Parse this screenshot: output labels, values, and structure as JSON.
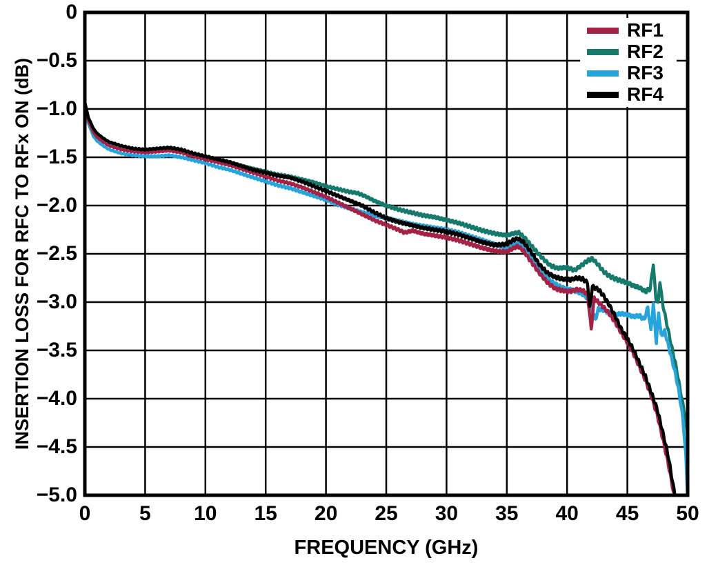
{
  "figure": {
    "background": "#ffffff",
    "border_color": "#000000",
    "grid_color": "#000000"
  },
  "chart_data": {
    "type": "line",
    "title": "",
    "xlabel": "FREQUENCY (GHz)",
    "ylabel": "INSERTION LOSS FOR RFC TO RFx ON (dB)",
    "xlim": [
      0,
      50
    ],
    "ylim": [
      -5,
      0
    ],
    "grid": true,
    "x_ticks": [
      0,
      5,
      10,
      15,
      20,
      25,
      30,
      35,
      40,
      45,
      50
    ],
    "x_tick_labels": [
      "0",
      "5",
      "10",
      "15",
      "20",
      "25",
      "30",
      "35",
      "40",
      "45",
      "50"
    ],
    "y_ticks": [
      0,
      -0.5,
      -1.0,
      -1.5,
      -2.0,
      -2.5,
      -3.0,
      -3.5,
      -4.0,
      -4.5,
      -5.0
    ],
    "y_tick_labels": [
      "0",
      "−0.5",
      "−1.0",
      "−1.5",
      "−2.0",
      "−2.5",
      "−3.0",
      "−3.5",
      "−4.0",
      "−4.5",
      "−5.0"
    ],
    "legend": {
      "position": "top-right",
      "entries": [
        {
          "name": "RF1",
          "color": "#A32246"
        },
        {
          "name": "RF2",
          "color": "#15796B"
        },
        {
          "name": "RF3",
          "color": "#27A4DB"
        },
        {
          "name": "RF4",
          "color": "#000000"
        }
      ]
    },
    "series": [
      {
        "name": "RF2",
        "color": "#15796B",
        "points": [
          [
            0,
            -0.94
          ],
          [
            0.3,
            -1.1
          ],
          [
            0.7,
            -1.22
          ],
          [
            1,
            -1.27
          ],
          [
            1.5,
            -1.32
          ],
          [
            2,
            -1.36
          ],
          [
            3,
            -1.4
          ],
          [
            4,
            -1.42
          ],
          [
            5,
            -1.43
          ],
          [
            6,
            -1.43
          ],
          [
            7,
            -1.42
          ],
          [
            8,
            -1.44
          ],
          [
            9,
            -1.47
          ],
          [
            10,
            -1.5
          ],
          [
            11,
            -1.53
          ],
          [
            12,
            -1.56
          ],
          [
            13,
            -1.59
          ],
          [
            14,
            -1.62
          ],
          [
            15,
            -1.65
          ],
          [
            16,
            -1.68
          ],
          [
            17,
            -1.7
          ],
          [
            18,
            -1.73
          ],
          [
            19,
            -1.76
          ],
          [
            20,
            -1.8
          ],
          [
            21,
            -1.83
          ],
          [
            22,
            -1.86
          ],
          [
            22.6,
            -1.87
          ],
          [
            23.2,
            -1.9
          ],
          [
            24,
            -1.95
          ],
          [
            25,
            -2.0
          ],
          [
            26,
            -2.04
          ],
          [
            27,
            -2.07
          ],
          [
            28,
            -2.1
          ],
          [
            29,
            -2.12
          ],
          [
            30,
            -2.15
          ],
          [
            31,
            -2.18
          ],
          [
            32,
            -2.22
          ],
          [
            33,
            -2.26
          ],
          [
            34,
            -2.29
          ],
          [
            35,
            -2.31
          ],
          [
            35.5,
            -2.29
          ],
          [
            36,
            -2.28
          ],
          [
            36.6,
            -2.35
          ],
          [
            37.2,
            -2.44
          ],
          [
            38,
            -2.55
          ],
          [
            38.6,
            -2.62
          ],
          [
            39.2,
            -2.65
          ],
          [
            40,
            -2.64
          ],
          [
            40.6,
            -2.67
          ],
          [
            41.2,
            -2.62
          ],
          [
            41.7,
            -2.57
          ],
          [
            42.1,
            -2.55
          ],
          [
            42.5,
            -2.6
          ],
          [
            43,
            -2.68
          ],
          [
            43.5,
            -2.73
          ],
          [
            44,
            -2.76
          ],
          [
            44.5,
            -2.78
          ],
          [
            45,
            -2.8
          ],
          [
            45.5,
            -2.83
          ],
          [
            46,
            -2.85
          ],
          [
            46.5,
            -2.89
          ],
          [
            46.9,
            -2.86
          ],
          [
            47.15,
            -2.6
          ],
          [
            47.35,
            -2.95
          ],
          [
            47.55,
            -3.02
          ],
          [
            47.7,
            -2.78
          ],
          [
            47.9,
            -3.0
          ],
          [
            48.2,
            -3.18
          ],
          [
            48.6,
            -3.42
          ],
          [
            49,
            -3.64
          ],
          [
            49.4,
            -3.92
          ],
          [
            49.7,
            -4.12
          ],
          [
            50,
            -4.38
          ]
        ]
      },
      {
        "name": "RF3",
        "color": "#27A4DB",
        "points": [
          [
            0,
            -0.96
          ],
          [
            0.3,
            -1.15
          ],
          [
            0.7,
            -1.28
          ],
          [
            1,
            -1.33
          ],
          [
            1.5,
            -1.38
          ],
          [
            2,
            -1.42
          ],
          [
            3,
            -1.46
          ],
          [
            4,
            -1.48
          ],
          [
            5,
            -1.49
          ],
          [
            6,
            -1.49
          ],
          [
            7,
            -1.48
          ],
          [
            8,
            -1.5
          ],
          [
            9,
            -1.53
          ],
          [
            10,
            -1.56
          ],
          [
            11,
            -1.6
          ],
          [
            12,
            -1.63
          ],
          [
            13,
            -1.67
          ],
          [
            14,
            -1.71
          ],
          [
            15,
            -1.75
          ],
          [
            16,
            -1.79
          ],
          [
            17,
            -1.82
          ],
          [
            18,
            -1.86
          ],
          [
            19,
            -1.9
          ],
          [
            20,
            -1.94
          ],
          [
            21,
            -1.99
          ],
          [
            22,
            -2.03
          ],
          [
            23,
            -2.07
          ],
          [
            24,
            -2.1
          ],
          [
            25,
            -2.13
          ],
          [
            26,
            -2.16
          ],
          [
            27,
            -2.19
          ],
          [
            28,
            -2.21
          ],
          [
            29,
            -2.23
          ],
          [
            30,
            -2.25
          ],
          [
            31,
            -2.28
          ],
          [
            32,
            -2.32
          ],
          [
            33,
            -2.36
          ],
          [
            34,
            -2.4
          ],
          [
            35,
            -2.44
          ],
          [
            35.5,
            -2.41
          ],
          [
            36,
            -2.39
          ],
          [
            36.5,
            -2.45
          ],
          [
            37,
            -2.54
          ],
          [
            37.7,
            -2.66
          ],
          [
            38.4,
            -2.76
          ],
          [
            39,
            -2.81
          ],
          [
            39.6,
            -2.85
          ],
          [
            40.2,
            -2.87
          ],
          [
            40.8,
            -2.89
          ],
          [
            41.3,
            -2.92
          ],
          [
            41.8,
            -2.97
          ],
          [
            42.1,
            -3.08
          ],
          [
            42.35,
            -3.18
          ],
          [
            42.6,
            -3.07
          ],
          [
            43,
            -3.08
          ],
          [
            43.5,
            -3.11
          ],
          [
            44,
            -3.13
          ],
          [
            44.5,
            -3.12
          ],
          [
            45,
            -3.13
          ],
          [
            45.5,
            -3.15
          ],
          [
            46,
            -3.14
          ],
          [
            46.4,
            -3.18
          ],
          [
            46.7,
            -3.05
          ],
          [
            46.95,
            -3.3
          ],
          [
            47.15,
            -3.02
          ],
          [
            47.4,
            -3.42
          ],
          [
            47.6,
            -3.1
          ],
          [
            47.8,
            -3.35
          ],
          [
            48.1,
            -3.3
          ],
          [
            48.4,
            -3.45
          ],
          [
            48.7,
            -3.6
          ],
          [
            49,
            -3.75
          ],
          [
            49.3,
            -3.95
          ],
          [
            49.6,
            -4.2
          ],
          [
            49.85,
            -4.6
          ],
          [
            50,
            -5.02
          ]
        ]
      },
      {
        "name": "RF1",
        "color": "#A32246",
        "points": [
          [
            0,
            -0.94
          ],
          [
            0.3,
            -1.12
          ],
          [
            0.7,
            -1.24
          ],
          [
            1,
            -1.29
          ],
          [
            1.5,
            -1.34
          ],
          [
            2,
            -1.38
          ],
          [
            3,
            -1.42
          ],
          [
            4,
            -1.44
          ],
          [
            5,
            -1.45
          ],
          [
            6,
            -1.44
          ],
          [
            7,
            -1.43
          ],
          [
            8,
            -1.45
          ],
          [
            9,
            -1.49
          ],
          [
            10,
            -1.52
          ],
          [
            11,
            -1.55
          ],
          [
            12,
            -1.58
          ],
          [
            13,
            -1.62
          ],
          [
            14,
            -1.66
          ],
          [
            15,
            -1.7
          ],
          [
            16,
            -1.74
          ],
          [
            17,
            -1.77
          ],
          [
            18,
            -1.81
          ],
          [
            19,
            -1.86
          ],
          [
            20,
            -1.91
          ],
          [
            21,
            -1.97
          ],
          [
            22,
            -2.03
          ],
          [
            23,
            -2.09
          ],
          [
            24,
            -2.15
          ],
          [
            25,
            -2.2
          ],
          [
            26,
            -2.25
          ],
          [
            26.5,
            -2.28
          ],
          [
            27.2,
            -2.26
          ],
          [
            28,
            -2.29
          ],
          [
            29,
            -2.31
          ],
          [
            30,
            -2.33
          ],
          [
            31,
            -2.36
          ],
          [
            32,
            -2.4
          ],
          [
            33,
            -2.44
          ],
          [
            34,
            -2.47
          ],
          [
            35,
            -2.48
          ],
          [
            35.4,
            -2.45
          ],
          [
            35.9,
            -2.42
          ],
          [
            36.4,
            -2.47
          ],
          [
            37,
            -2.58
          ],
          [
            37.7,
            -2.7
          ],
          [
            38.4,
            -2.8
          ],
          [
            39,
            -2.86
          ],
          [
            39.6,
            -2.88
          ],
          [
            40.2,
            -2.89
          ],
          [
            40.8,
            -2.87
          ],
          [
            41.3,
            -2.88
          ],
          [
            41.7,
            -2.92
          ],
          [
            42,
            -3.28
          ],
          [
            42.25,
            -2.96
          ],
          [
            42.6,
            -3.0
          ],
          [
            43,
            -3.05
          ],
          [
            43.5,
            -3.12
          ],
          [
            44,
            -3.21
          ],
          [
            44.5,
            -3.32
          ],
          [
            45,
            -3.42
          ],
          [
            45.5,
            -3.53
          ],
          [
            46,
            -3.67
          ],
          [
            46.5,
            -3.81
          ],
          [
            47,
            -3.98
          ],
          [
            47.5,
            -4.18
          ],
          [
            48,
            -4.45
          ],
          [
            48.4,
            -4.68
          ],
          [
            48.8,
            -4.95
          ],
          [
            48.95,
            -5.05
          ]
        ]
      },
      {
        "name": "RF4",
        "color": "#000000",
        "points": [
          [
            0,
            -0.93
          ],
          [
            0.3,
            -1.09
          ],
          [
            0.7,
            -1.2
          ],
          [
            1,
            -1.25
          ],
          [
            1.5,
            -1.3
          ],
          [
            2,
            -1.34
          ],
          [
            3,
            -1.38
          ],
          [
            4,
            -1.41
          ],
          [
            5,
            -1.42
          ],
          [
            6,
            -1.41
          ],
          [
            7,
            -1.4
          ],
          [
            8,
            -1.42
          ],
          [
            9,
            -1.46
          ],
          [
            10,
            -1.49
          ],
          [
            11,
            -1.52
          ],
          [
            12,
            -1.55
          ],
          [
            13,
            -1.59
          ],
          [
            14,
            -1.63
          ],
          [
            15,
            -1.66
          ],
          [
            16,
            -1.69
          ],
          [
            17,
            -1.71
          ],
          [
            18,
            -1.75
          ],
          [
            19,
            -1.8
          ],
          [
            20,
            -1.85
          ],
          [
            21,
            -1.9
          ],
          [
            22,
            -1.95
          ],
          [
            23,
            -2.0
          ],
          [
            24,
            -2.07
          ],
          [
            25,
            -2.13
          ],
          [
            26,
            -2.17
          ],
          [
            27,
            -2.2
          ],
          [
            28,
            -2.23
          ],
          [
            29,
            -2.25
          ],
          [
            30,
            -2.27
          ],
          [
            31,
            -2.3
          ],
          [
            32,
            -2.34
          ],
          [
            33,
            -2.38
          ],
          [
            34,
            -2.41
          ],
          [
            35,
            -2.4
          ],
          [
            35.5,
            -2.36
          ],
          [
            35.9,
            -2.34
          ],
          [
            36.4,
            -2.38
          ],
          [
            37,
            -2.48
          ],
          [
            37.7,
            -2.61
          ],
          [
            38.4,
            -2.7
          ],
          [
            39,
            -2.74
          ],
          [
            39.6,
            -2.76
          ],
          [
            40.2,
            -2.77
          ],
          [
            40.8,
            -2.75
          ],
          [
            41.3,
            -2.76
          ],
          [
            41.7,
            -2.8
          ],
          [
            41.88,
            -3.06
          ],
          [
            42.1,
            -2.84
          ],
          [
            42.6,
            -2.87
          ],
          [
            43,
            -2.93
          ],
          [
            43.5,
            -3.03
          ],
          [
            44,
            -3.15
          ],
          [
            44.5,
            -3.28
          ],
          [
            45,
            -3.38
          ],
          [
            45.5,
            -3.49
          ],
          [
            46,
            -3.63
          ],
          [
            46.5,
            -3.77
          ],
          [
            47,
            -3.94
          ],
          [
            47.5,
            -4.12
          ],
          [
            48,
            -4.38
          ],
          [
            48.4,
            -4.6
          ],
          [
            48.8,
            -4.9
          ],
          [
            49.05,
            -5.05
          ]
        ]
      }
    ]
  }
}
